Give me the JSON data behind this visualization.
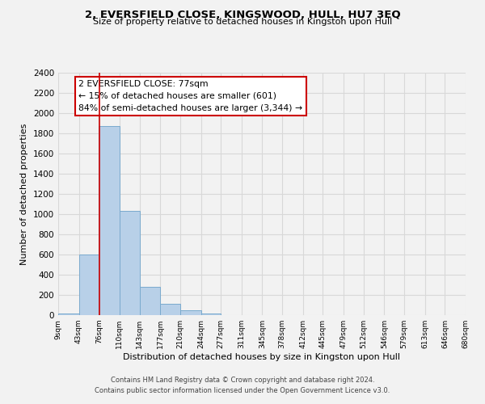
{
  "title": "2, EVERSFIELD CLOSE, KINGSWOOD, HULL, HU7 3EQ",
  "subtitle": "Size of property relative to detached houses in Kingston upon Hull",
  "xlabel": "Distribution of detached houses by size in Kingston upon Hull",
  "ylabel": "Number of detached properties",
  "footer_line1": "Contains HM Land Registry data © Crown copyright and database right 2024.",
  "footer_line2": "Contains public sector information licensed under the Open Government Licence v3.0.",
  "bin_edges": [
    9,
    43,
    76,
    110,
    143,
    177,
    210,
    244,
    277,
    311,
    345,
    378,
    412,
    445,
    479,
    512,
    546,
    579,
    613,
    646,
    680
  ],
  "bin_labels": [
    "9sqm",
    "43sqm",
    "76sqm",
    "110sqm",
    "143sqm",
    "177sqm",
    "210sqm",
    "244sqm",
    "277sqm",
    "311sqm",
    "345sqm",
    "378sqm",
    "412sqm",
    "445sqm",
    "479sqm",
    "512sqm",
    "546sqm",
    "579sqm",
    "613sqm",
    "646sqm",
    "680sqm"
  ],
  "bar_heights": [
    20,
    600,
    1870,
    1035,
    280,
    110,
    48,
    20,
    0,
    0,
    0,
    0,
    0,
    0,
    0,
    0,
    0,
    0,
    0,
    0
  ],
  "bar_color": "#b8d0e8",
  "bar_edge_color": "#7aaace",
  "vline_x": 77,
  "vline_color": "#cc0000",
  "ylim": [
    0,
    2400
  ],
  "yticks": [
    0,
    200,
    400,
    600,
    800,
    1000,
    1200,
    1400,
    1600,
    1800,
    2000,
    2200,
    2400
  ],
  "annotation_title": "2 EVERSFIELD CLOSE: 77sqm",
  "annotation_line1": "← 15% of detached houses are smaller (601)",
  "annotation_line2": "84% of semi-detached houses are larger (3,344) →",
  "grid_color": "#d8d8d8",
  "background_color": "#f2f2f2"
}
